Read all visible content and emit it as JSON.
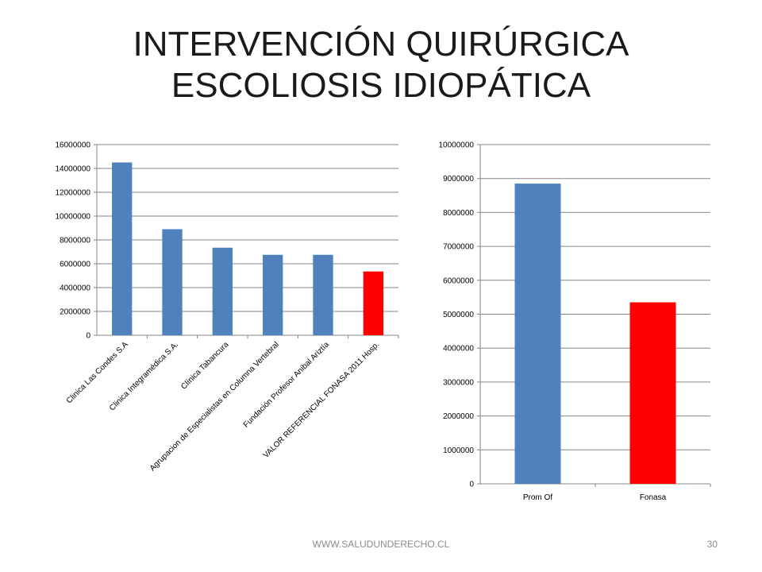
{
  "slide": {
    "title_line1": "INTERVENCIÓN QUIRÚRGICA",
    "title_line2": "ESCOLIOSIS IDIOPÁTICA",
    "footer_url": "WWW.SALUDUNDERECHO.CL",
    "page_number": "30"
  },
  "chart_data": [
    {
      "type": "bar",
      "title": "",
      "categories": [
        "Clinica Las Condes S.A",
        "Clinica Integramédica S.A.",
        "Clínica Tabancura",
        "Agrupacion de Especialistas en Columna Vertebral",
        "Fundación Profesor Anibal Ariztía",
        "VALOR REFERENCIAL FONASA 2011 Hosp."
      ],
      "values": [
        14500000,
        8900000,
        7350000,
        6750000,
        6750000,
        5350000
      ],
      "bar_colors": [
        "#4f81bd",
        "#4f81bd",
        "#4f81bd",
        "#4f81bd",
        "#4f81bd",
        "#ff0000"
      ],
      "ylim": [
        0,
        16000000
      ],
      "yticks": [
        0,
        2000000,
        4000000,
        6000000,
        8000000,
        10000000,
        12000000,
        14000000,
        16000000
      ],
      "grid": true,
      "legend": "none"
    },
    {
      "type": "bar",
      "title": "",
      "categories": [
        "Prom Of",
        "Fonasa"
      ],
      "values": [
        8850000,
        5350000
      ],
      "bar_colors": [
        "#4f81bd",
        "#ff0000"
      ],
      "ylim": [
        0,
        10000000
      ],
      "yticks": [
        0,
        1000000,
        2000000,
        3000000,
        4000000,
        5000000,
        6000000,
        7000000,
        8000000,
        9000000,
        10000000
      ],
      "grid": true,
      "legend": "none"
    }
  ]
}
